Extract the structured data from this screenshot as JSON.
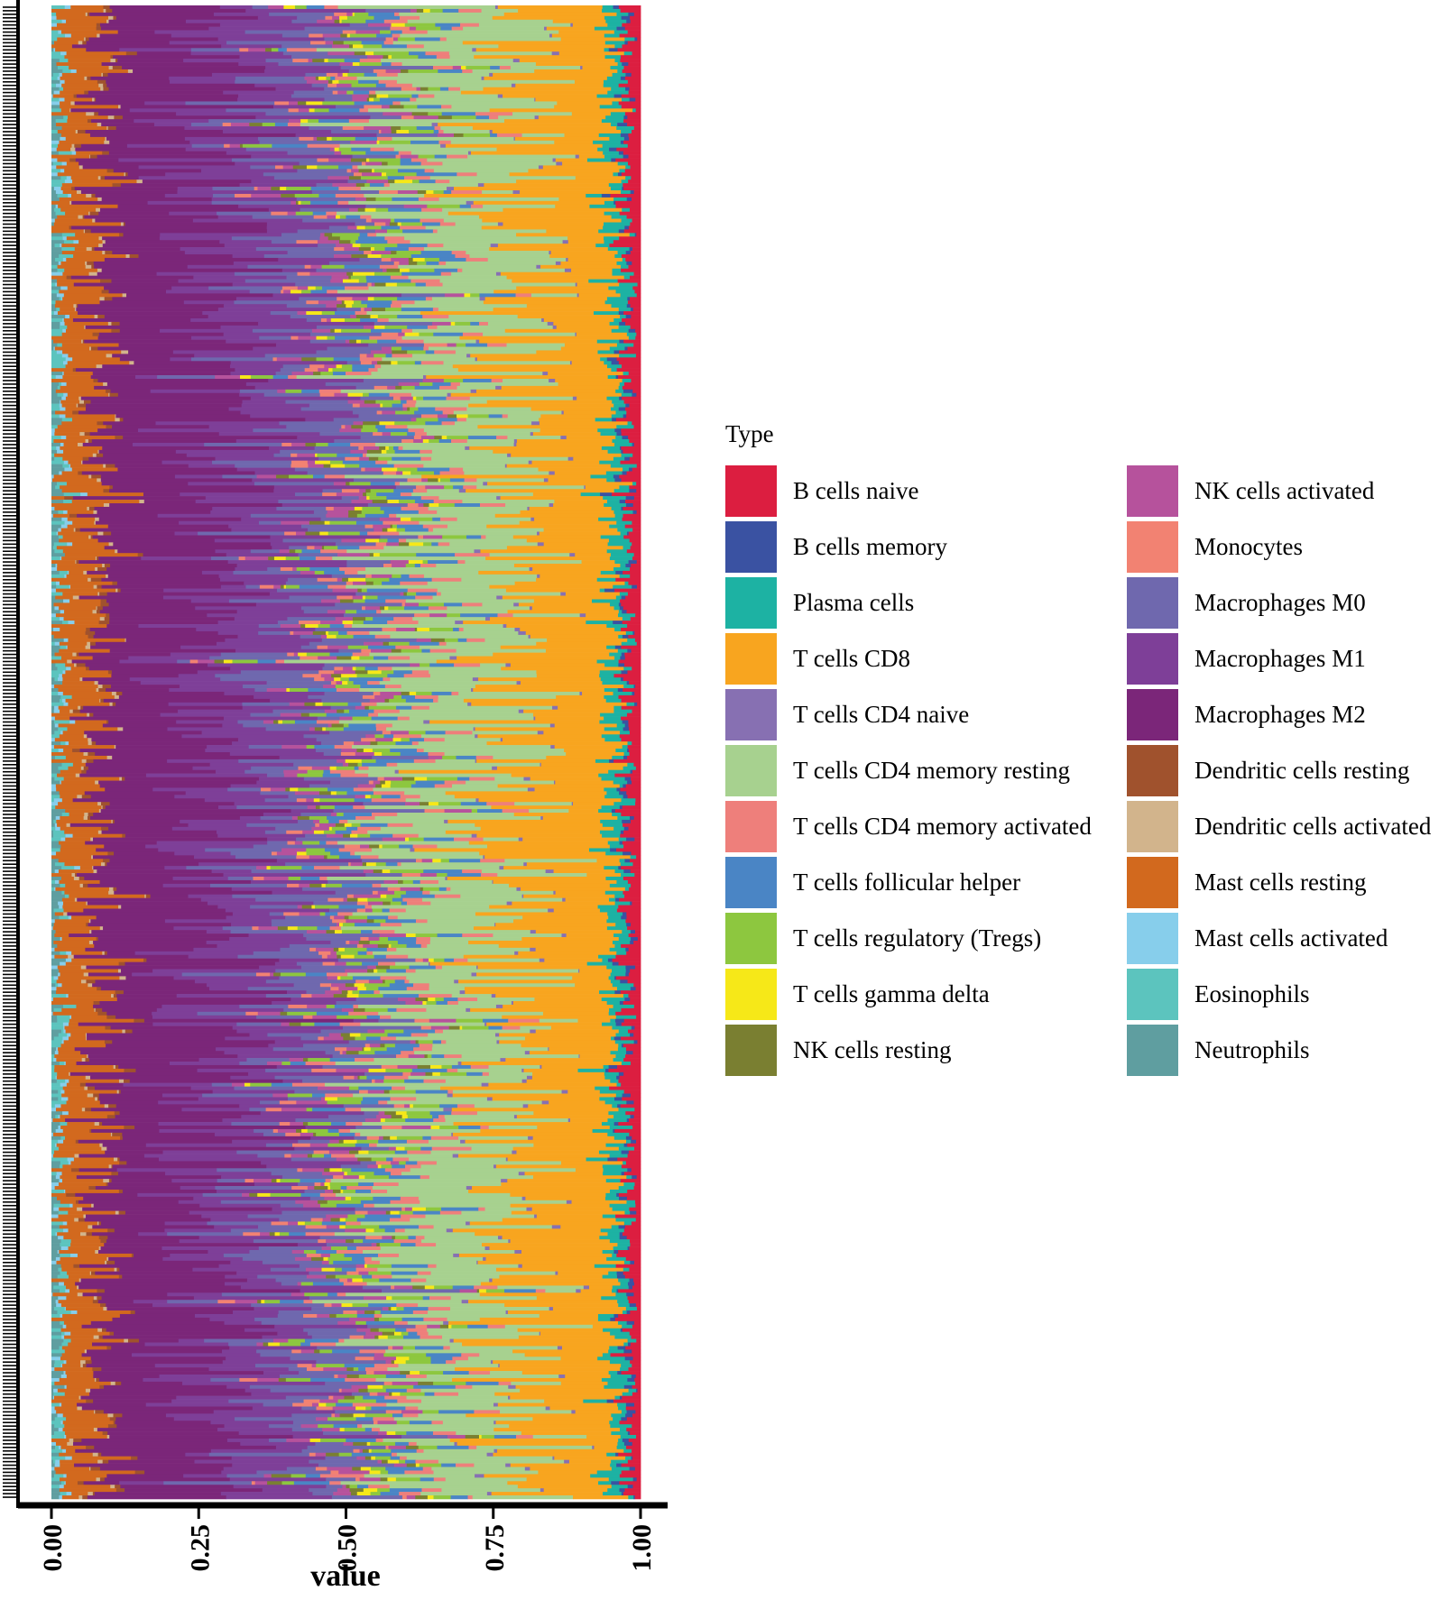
{
  "chart_data": {
    "type": "bar",
    "orientation": "horizontal",
    "stacked": true,
    "normalized": true,
    "xlabel": "value",
    "ylabel": "",
    "xlim": [
      0,
      1
    ],
    "x_ticks": [
      "0.00",
      "0.25",
      "0.50",
      "0.75",
      "1.00"
    ],
    "x_tick_values": [
      0,
      0.25,
      0.5,
      0.75,
      1.0
    ],
    "sample_count": 420,
    "legend_title": "Type",
    "legend_position": "right",
    "cell_types": [
      {
        "name": "B cells naive",
        "color": "#DC1E40",
        "mean_fraction": 0.02
      },
      {
        "name": "B cells memory",
        "color": "#3A52A2",
        "mean_fraction": 0.008
      },
      {
        "name": "Plasma cells",
        "color": "#1DB2A3",
        "mean_fraction": 0.02
      },
      {
        "name": "T cells CD8",
        "color": "#F8A51F",
        "mean_fraction": 0.14
      },
      {
        "name": "T cells CD4 naive",
        "color": "#8770B2",
        "mean_fraction": 0.006
      },
      {
        "name": "T cells CD4 memory resting",
        "color": "#A7D18F",
        "mean_fraction": 0.14
      },
      {
        "name": "T cells CD4 memory activated",
        "color": "#EE7F7B",
        "mean_fraction": 0.025
      },
      {
        "name": "T cells follicular helper",
        "color": "#4A85C5",
        "mean_fraction": 0.03
      },
      {
        "name": "T cells regulatory (Tregs)",
        "color": "#8DC73F",
        "mean_fraction": 0.025
      },
      {
        "name": "T cells gamma delta",
        "color": "#F6E818",
        "mean_fraction": 0.012
      },
      {
        "name": "NK cells resting",
        "color": "#7A7F31",
        "mean_fraction": 0.012
      },
      {
        "name": "NK cells activated",
        "color": "#B6529C",
        "mean_fraction": 0.02
      },
      {
        "name": "Monocytes",
        "color": "#F28272",
        "mean_fraction": 0.015
      },
      {
        "name": "Macrophages M0",
        "color": "#6F68AE",
        "mean_fraction": 0.075
      },
      {
        "name": "Macrophages M1",
        "color": "#7E3F98",
        "mean_fraction": 0.11
      },
      {
        "name": "Macrophages M2",
        "color": "#7B2679",
        "mean_fraction": 0.17
      },
      {
        "name": "Dendritic cells resting",
        "color": "#A0522D",
        "mean_fraction": 0.008
      },
      {
        "name": "Dendritic cells activated",
        "color": "#D2B48C",
        "mean_fraction": 0.005
      },
      {
        "name": "Mast cells resting",
        "color": "#D2691E",
        "mean_fraction": 0.05
      },
      {
        "name": "Mast cells activated",
        "color": "#87CEEB",
        "mean_fraction": 0.006
      },
      {
        "name": "Eosinophils",
        "color": "#5CC4BE",
        "mean_fraction": 0.012
      },
      {
        "name": "Neutrophils",
        "color": "#5F9EA0",
        "mean_fraction": 0.01
      }
    ]
  }
}
